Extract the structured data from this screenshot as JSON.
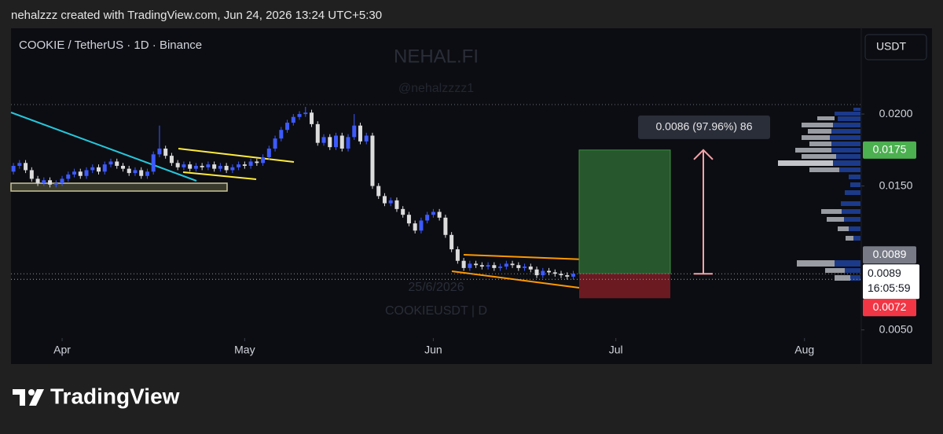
{
  "header": "nehalzzz created with TradingView.com, Jun 24, 2026 13:24 UTC+5:30",
  "chart_data": {
    "type": "candlestick",
    "title": "COOKIE / TetherUS · 1D · Binance",
    "currency": "USDT",
    "watermark": {
      "brand": "NEHAL.FI",
      "handle": "@nehalzzzz1",
      "date": "25/6/2026",
      "symbol": "COOKIEUSDT | D"
    },
    "colors": {
      "up": "#3d5afe",
      "down": "#dcdcdc"
    },
    "x": [
      83,
      84,
      85,
      86,
      87,
      88,
      89,
      90,
      91,
      92,
      93,
      94,
      95,
      96,
      97,
      98,
      99,
      100,
      101,
      102,
      103,
      104,
      105,
      106,
      107,
      108,
      109,
      110,
      111,
      112,
      113,
      114,
      115,
      116,
      117,
      118,
      119,
      120,
      121,
      122,
      123,
      124,
      125,
      126,
      127,
      128,
      129,
      130,
      131,
      132,
      133,
      134,
      135,
      136,
      137,
      138,
      139,
      140,
      141,
      142,
      143,
      144,
      145,
      146,
      147,
      148,
      149,
      150,
      151,
      152,
      153,
      154,
      155,
      156,
      157,
      158,
      159,
      160,
      161,
      162,
      163,
      164,
      165,
      166,
      167,
      168,
      169,
      170,
      171,
      172,
      173,
      174,
      175
    ],
    "open": [
      0.016,
      0.0164,
      0.0166,
      0.0161,
      0.0155,
      0.0152,
      0.0154,
      0.0151,
      0.0152,
      0.0155,
      0.0158,
      0.016,
      0.0157,
      0.0161,
      0.0163,
      0.016,
      0.0165,
      0.0167,
      0.0164,
      0.0162,
      0.0159,
      0.0161,
      0.0157,
      0.016,
      0.0172,
      0.0176,
      0.0171,
      0.0166,
      0.0163,
      0.0165,
      0.0162,
      0.0164,
      0.0163,
      0.0165,
      0.0162,
      0.0164,
      0.0161,
      0.0163,
      0.0165,
      0.0164,
      0.0167,
      0.0166,
      0.017,
      0.0176,
      0.0183,
      0.0189,
      0.0194,
      0.0198,
      0.02,
      0.0201,
      0.0193,
      0.018,
      0.0184,
      0.0177,
      0.0185,
      0.0176,
      0.0184,
      0.0192,
      0.0181,
      0.0185,
      0.015,
      0.0143,
      0.0138,
      0.014,
      0.0134,
      0.013,
      0.0124,
      0.0119,
      0.0126,
      0.013,
      0.0132,
      0.0128,
      0.0116,
      0.0106,
      0.0098,
      0.0093,
      0.0096,
      0.0095,
      0.0094,
      0.0095,
      0.0093,
      0.0094,
      0.0096,
      0.0095,
      0.0093,
      0.0094,
      0.0092,
      0.0088,
      0.0091,
      0.009,
      0.0089,
      0.0088,
      0.0087
    ],
    "high": [
      0.0166,
      0.0168,
      0.0168,
      0.0163,
      0.0157,
      0.0156,
      0.0156,
      0.0154,
      0.0157,
      0.016,
      0.0162,
      0.0162,
      0.0163,
      0.0165,
      0.0165,
      0.0167,
      0.0169,
      0.0169,
      0.0166,
      0.0164,
      0.0163,
      0.0163,
      0.0162,
      0.0174,
      0.0192,
      0.0178,
      0.0173,
      0.0168,
      0.0167,
      0.0167,
      0.0166,
      0.0166,
      0.0167,
      0.0167,
      0.0166,
      0.0166,
      0.0165,
      0.0167,
      0.0167,
      0.0169,
      0.0169,
      0.0172,
      0.0178,
      0.0185,
      0.0191,
      0.0196,
      0.02,
      0.0202,
      0.0205,
      0.0203,
      0.0195,
      0.0186,
      0.0186,
      0.0187,
      0.0187,
      0.0186,
      0.02,
      0.0194,
      0.0187,
      0.0187,
      0.0152,
      0.0145,
      0.0142,
      0.0142,
      0.0136,
      0.0132,
      0.0126,
      0.0128,
      0.0132,
      0.0134,
      0.0134,
      0.013,
      0.0118,
      0.0108,
      0.01,
      0.0098,
      0.0098,
      0.0097,
      0.0097,
      0.0097,
      0.0096,
      0.0098,
      0.0098,
      0.0097,
      0.0096,
      0.0096,
      0.0094,
      0.0093,
      0.0093,
      0.0092,
      0.0091,
      0.009,
      0.0091
    ],
    "low": [
      0.0158,
      0.0162,
      0.0159,
      0.0153,
      0.015,
      0.015,
      0.0149,
      0.0149,
      0.015,
      0.0153,
      0.0156,
      0.0155,
      0.0155,
      0.0159,
      0.0158,
      0.0158,
      0.0163,
      0.0162,
      0.016,
      0.0157,
      0.0157,
      0.0155,
      0.0155,
      0.0158,
      0.017,
      0.0169,
      0.0164,
      0.0161,
      0.0161,
      0.016,
      0.016,
      0.0161,
      0.0161,
      0.016,
      0.016,
      0.0159,
      0.0159,
      0.0161,
      0.0162,
      0.0162,
      0.0164,
      0.0164,
      0.0168,
      0.0174,
      0.0181,
      0.0187,
      0.0192,
      0.0196,
      0.0198,
      0.0191,
      0.0178,
      0.0178,
      0.0175,
      0.0175,
      0.0174,
      0.0174,
      0.0182,
      0.0179,
      0.0179,
      0.0148,
      0.0141,
      0.0136,
      0.0136,
      0.0132,
      0.0128,
      0.0122,
      0.0117,
      0.0117,
      0.0124,
      0.0128,
      0.0126,
      0.0114,
      0.0104,
      0.0096,
      0.0091,
      0.0091,
      0.0093,
      0.0092,
      0.0092,
      0.0091,
      0.0091,
      0.0092,
      0.0093,
      0.0091,
      0.0091,
      0.009,
      0.0086,
      0.0086,
      0.0088,
      0.0087,
      0.0086,
      0.0085,
      0.0085
    ],
    "close": [
      0.0164,
      0.0166,
      0.0161,
      0.0155,
      0.0152,
      0.0154,
      0.0151,
      0.0152,
      0.0155,
      0.0158,
      0.016,
      0.0157,
      0.0161,
      0.0163,
      0.016,
      0.0165,
      0.0167,
      0.0164,
      0.0162,
      0.0159,
      0.0161,
      0.0157,
      0.016,
      0.0172,
      0.0176,
      0.0171,
      0.0166,
      0.0163,
      0.0165,
      0.0162,
      0.0164,
      0.0163,
      0.0165,
      0.0162,
      0.0164,
      0.0161,
      0.0163,
      0.0165,
      0.0164,
      0.0167,
      0.0166,
      0.017,
      0.0176,
      0.0183,
      0.0189,
      0.0194,
      0.0198,
      0.02,
      0.0201,
      0.0193,
      0.018,
      0.0184,
      0.0177,
      0.0185,
      0.0176,
      0.0184,
      0.0192,
      0.0181,
      0.0185,
      0.015,
      0.0143,
      0.0138,
      0.014,
      0.0134,
      0.013,
      0.0124,
      0.0119,
      0.0126,
      0.013,
      0.0132,
      0.0128,
      0.0116,
      0.0106,
      0.0098,
      0.0093,
      0.0096,
      0.0095,
      0.0094,
      0.0095,
      0.0093,
      0.0094,
      0.0096,
      0.0095,
      0.0093,
      0.0094,
      0.0092,
      0.0088,
      0.0091,
      0.009,
      0.0089,
      0.0088,
      0.0087,
      0.0089
    ],
    "xlim": [
      82.6,
      222.2
    ],
    "ylim": [
      0.00443,
      0.02596
    ],
    "xticks": [
      {
        "value": 91,
        "label": "Apr"
      },
      {
        "value": 121,
        "label": "May"
      },
      {
        "value": 152,
        "label": "Jun"
      },
      {
        "value": 182,
        "label": "Jul"
      },
      {
        "value": 213,
        "label": "Aug"
      }
    ],
    "yticks": [
      {
        "value": 0.02,
        "label": "0.0200"
      },
      {
        "value": 0.015,
        "label": "0.0150"
      },
      {
        "value": 0.005,
        "label": "0.0050"
      }
    ],
    "position": {
      "target": {
        "value": 0.0175,
        "label": "0.0175",
        "color": "#4caf50"
      },
      "entry": {
        "value": 0.0089,
        "label": "0.0089",
        "color": "#787b86"
      },
      "stop": {
        "value": 0.0072,
        "label": "0.0072",
        "color": "#f23645"
      },
      "measure_label": "0.0086 (97.96%) 86"
    },
    "last_price": {
      "value": 0.0089,
      "label": "0.0089",
      "countdown": "16:05:59"
    }
  },
  "footer": {
    "logo": "TradingView"
  }
}
